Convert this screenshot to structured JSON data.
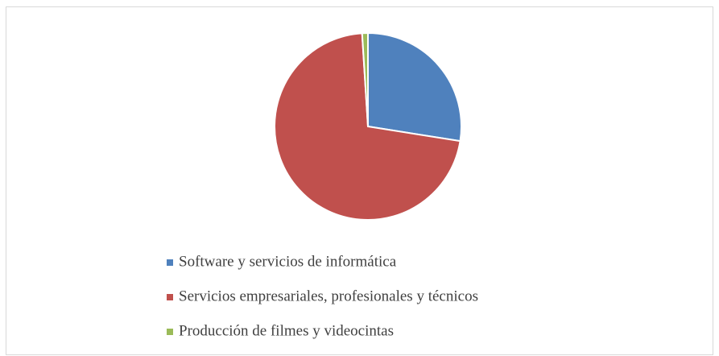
{
  "chart_data": {
    "type": "pie",
    "categories": [
      "Software y servicios de informática",
      "Servicios empresariales, profesionales y técnicos",
      "Producción de filmes y videocintas"
    ],
    "values": [
      27.5,
      71.5,
      1
    ],
    "colors": [
      "#4f81bd",
      "#c0504d",
      "#9bbb59"
    ],
    "legend": "bottom"
  }
}
